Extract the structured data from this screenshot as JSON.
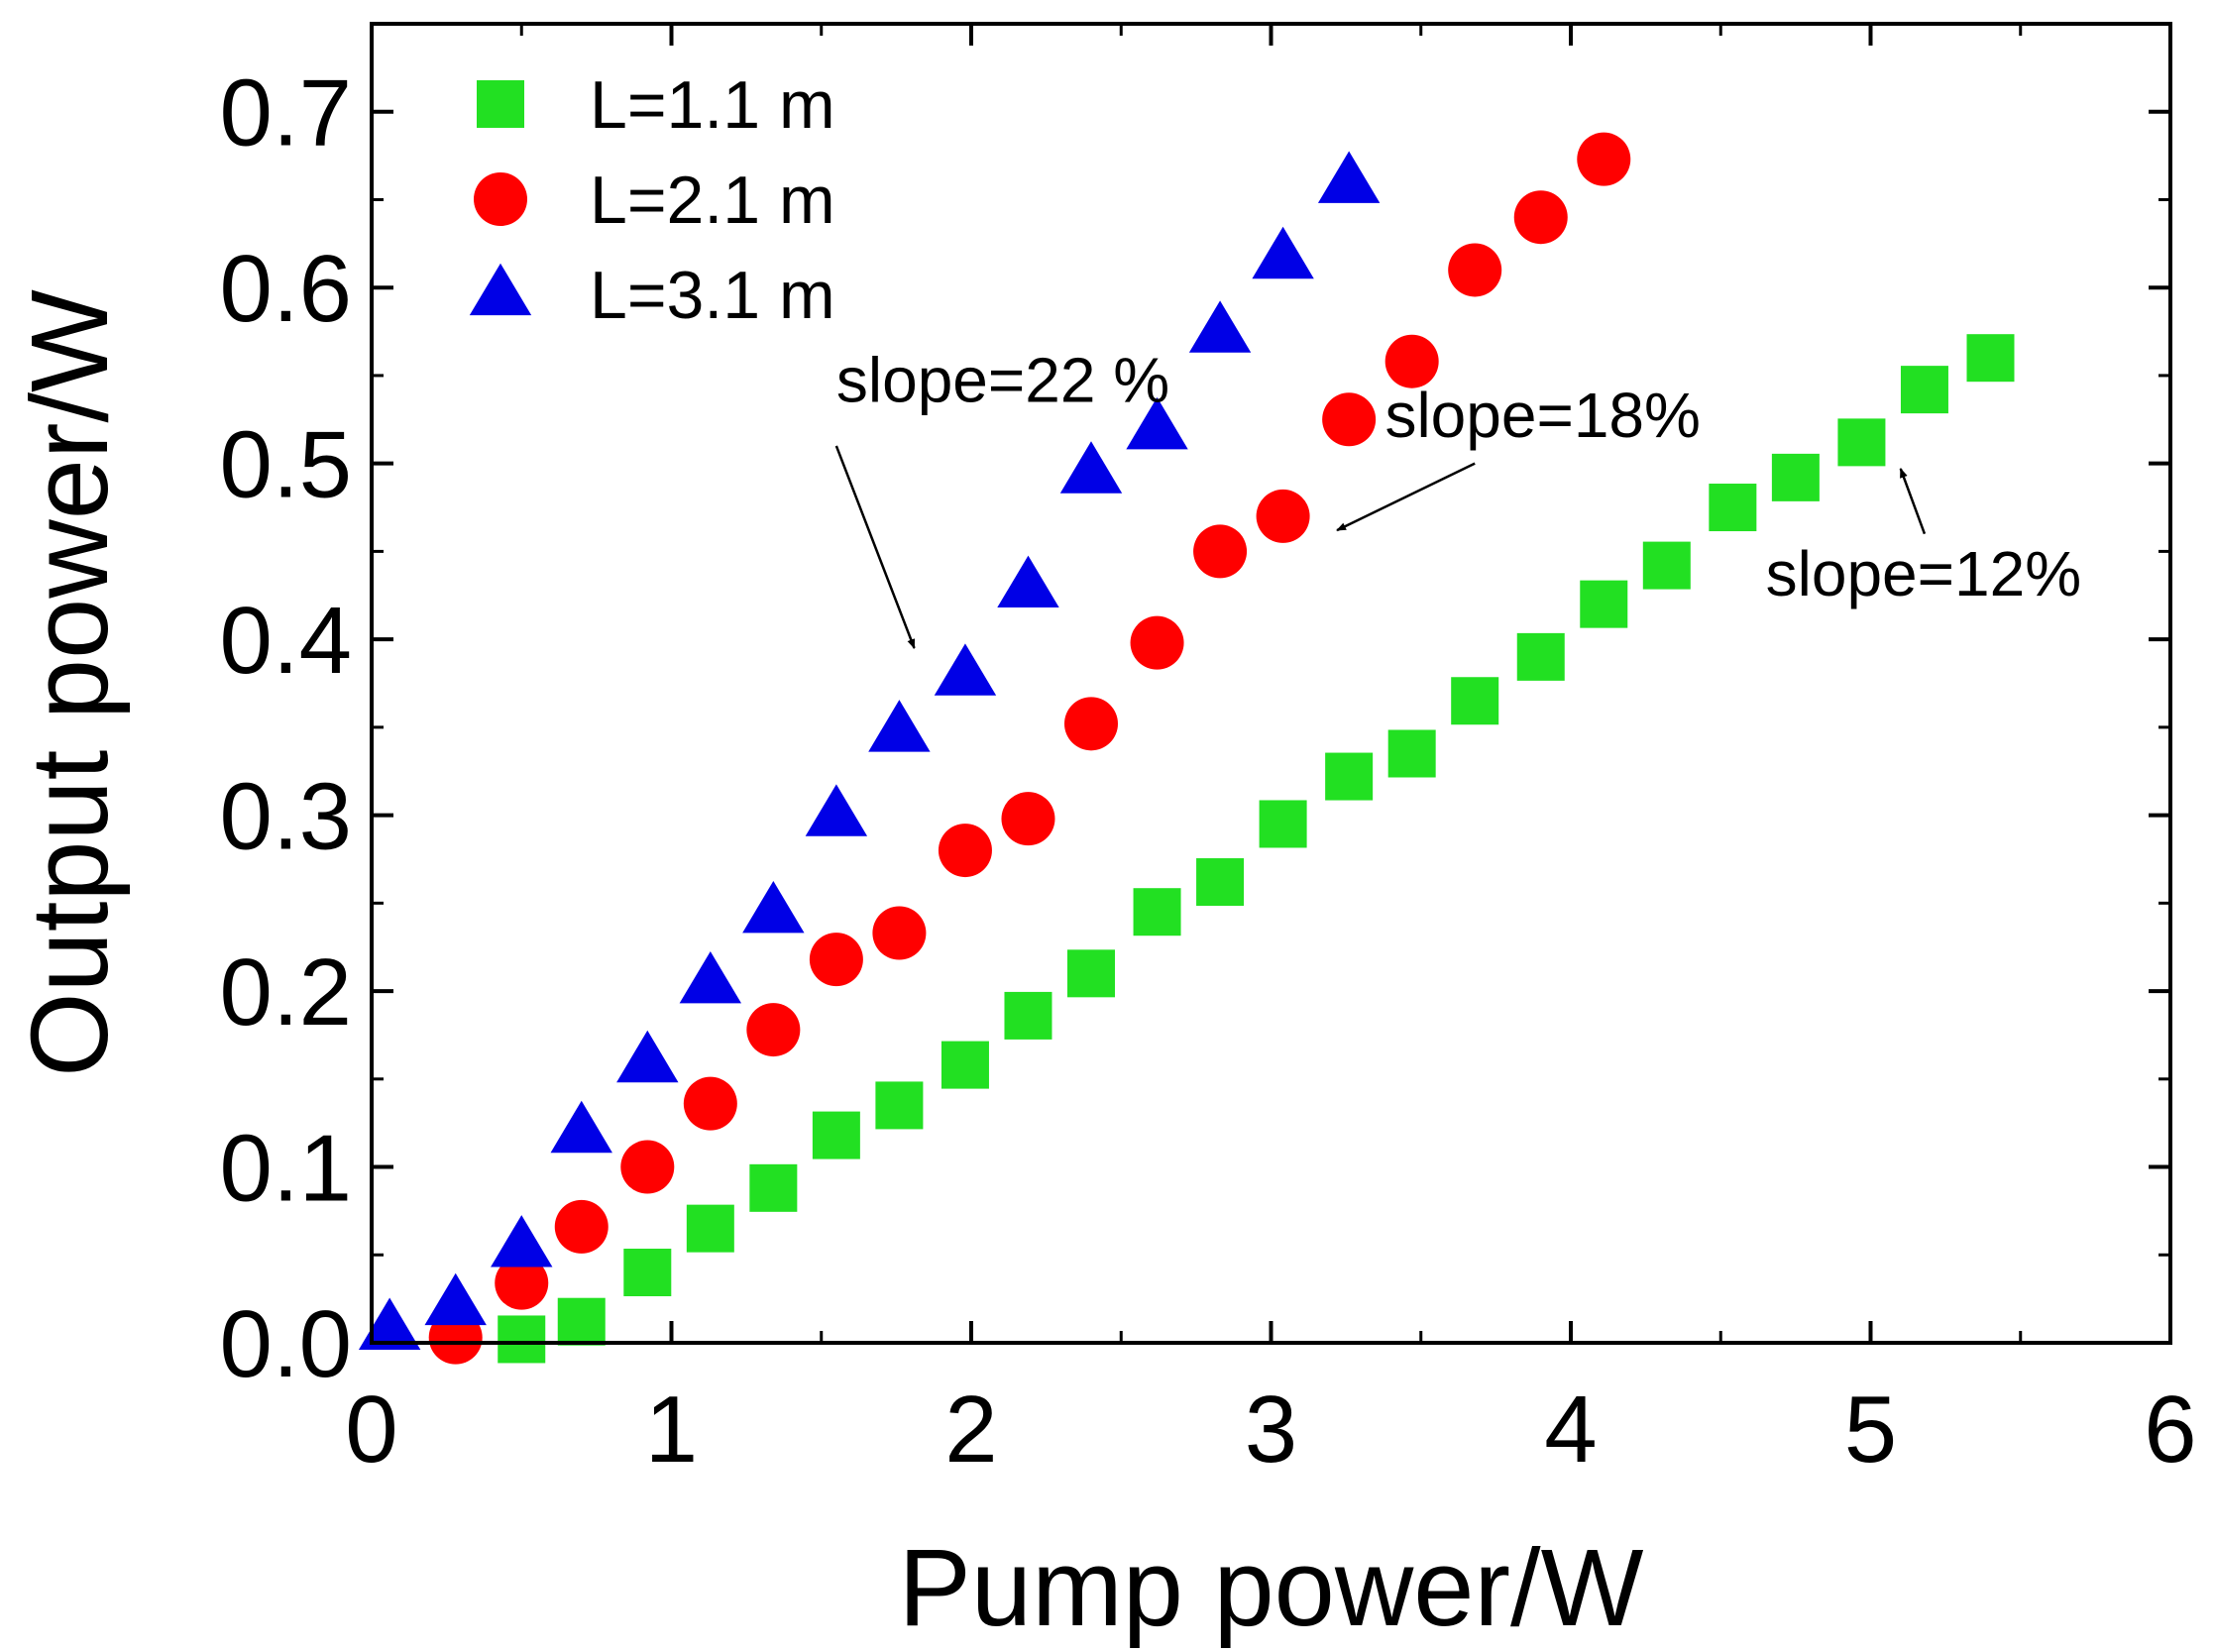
{
  "chart_data": {
    "type": "scatter",
    "title": "",
    "xlabel": "Pump power/W",
    "ylabel": "Output power/W",
    "xlim": [
      0,
      6
    ],
    "ylim": [
      0,
      0.75
    ],
    "xticks": [
      0,
      1,
      2,
      3,
      4,
      5,
      6
    ],
    "xtick_labels": [
      "0",
      "1",
      "2",
      "3",
      "4",
      "5",
      "6"
    ],
    "yticks": [
      0.0,
      0.1,
      0.2,
      0.3,
      0.4,
      0.5,
      0.6,
      0.7
    ],
    "ytick_labels": [
      "0.0",
      "0.1",
      "0.2",
      "0.3",
      "0.4",
      "0.5",
      "0.6",
      "0.7"
    ],
    "grid": false,
    "legend_position": "top-left",
    "series": [
      {
        "name": "L=1.1 m",
        "marker": "square",
        "color": "#22e022",
        "x": [
          0.5,
          0.7,
          0.92,
          1.13,
          1.34,
          1.55,
          1.76,
          1.98,
          2.19,
          2.4,
          2.62,
          2.83,
          3.04,
          3.26,
          3.47,
          3.68,
          3.9,
          4.11,
          4.32,
          4.54,
          4.75,
          4.97,
          5.18,
          5.4
        ],
        "y": [
          0.002,
          0.012,
          0.04,
          0.065,
          0.088,
          0.118,
          0.135,
          0.158,
          0.186,
          0.21,
          0.245,
          0.262,
          0.295,
          0.322,
          0.335,
          0.365,
          0.39,
          0.42,
          0.442,
          0.475,
          0.492,
          0.512,
          0.542,
          0.56
        ]
      },
      {
        "name": "L=2.1 m",
        "marker": "circle",
        "color": "#ff0000",
        "x": [
          0.28,
          0.5,
          0.7,
          0.92,
          1.13,
          1.34,
          1.55,
          1.76,
          1.98,
          2.19,
          2.4,
          2.62,
          2.83,
          3.04,
          3.26,
          3.47,
          3.68,
          3.9,
          4.11
        ],
        "y": [
          0.003,
          0.034,
          0.066,
          0.1,
          0.136,
          0.178,
          0.218,
          0.233,
          0.28,
          0.298,
          0.352,
          0.398,
          0.45,
          0.47,
          0.525,
          0.558,
          0.61,
          0.64,
          0.673
        ]
      },
      {
        "name": "L=3.1 m",
        "marker": "triangle",
        "color": "#0000e6",
        "x": [
          0.06,
          0.28,
          0.5,
          0.7,
          0.92,
          1.13,
          1.34,
          1.55,
          1.76,
          1.98,
          2.19,
          2.4,
          2.62,
          2.83,
          3.04,
          3.26
        ],
        "y": [
          0.008,
          0.022,
          0.055,
          0.12,
          0.16,
          0.205,
          0.245,
          0.3,
          0.348,
          0.38,
          0.43,
          0.495,
          0.52,
          0.575,
          0.617,
          0.66
        ]
      }
    ],
    "annotations": [
      {
        "text": "slope=22 %",
        "text_x": 1.55,
        "text_y": 0.535,
        "arrow_from": [
          1.55,
          0.51
        ],
        "arrow_to": [
          1.81,
          0.395
        ]
      },
      {
        "text": "slope=18%",
        "text_x": 3.38,
        "text_y": 0.515,
        "arrow_from": [
          3.68,
          0.5
        ],
        "arrow_to": [
          3.22,
          0.462
        ]
      },
      {
        "text": "slope=12%",
        "text_x": 4.65,
        "text_y": 0.425,
        "arrow_from": [
          5.18,
          0.46
        ],
        "arrow_to": [
          5.1,
          0.497
        ]
      }
    ]
  }
}
